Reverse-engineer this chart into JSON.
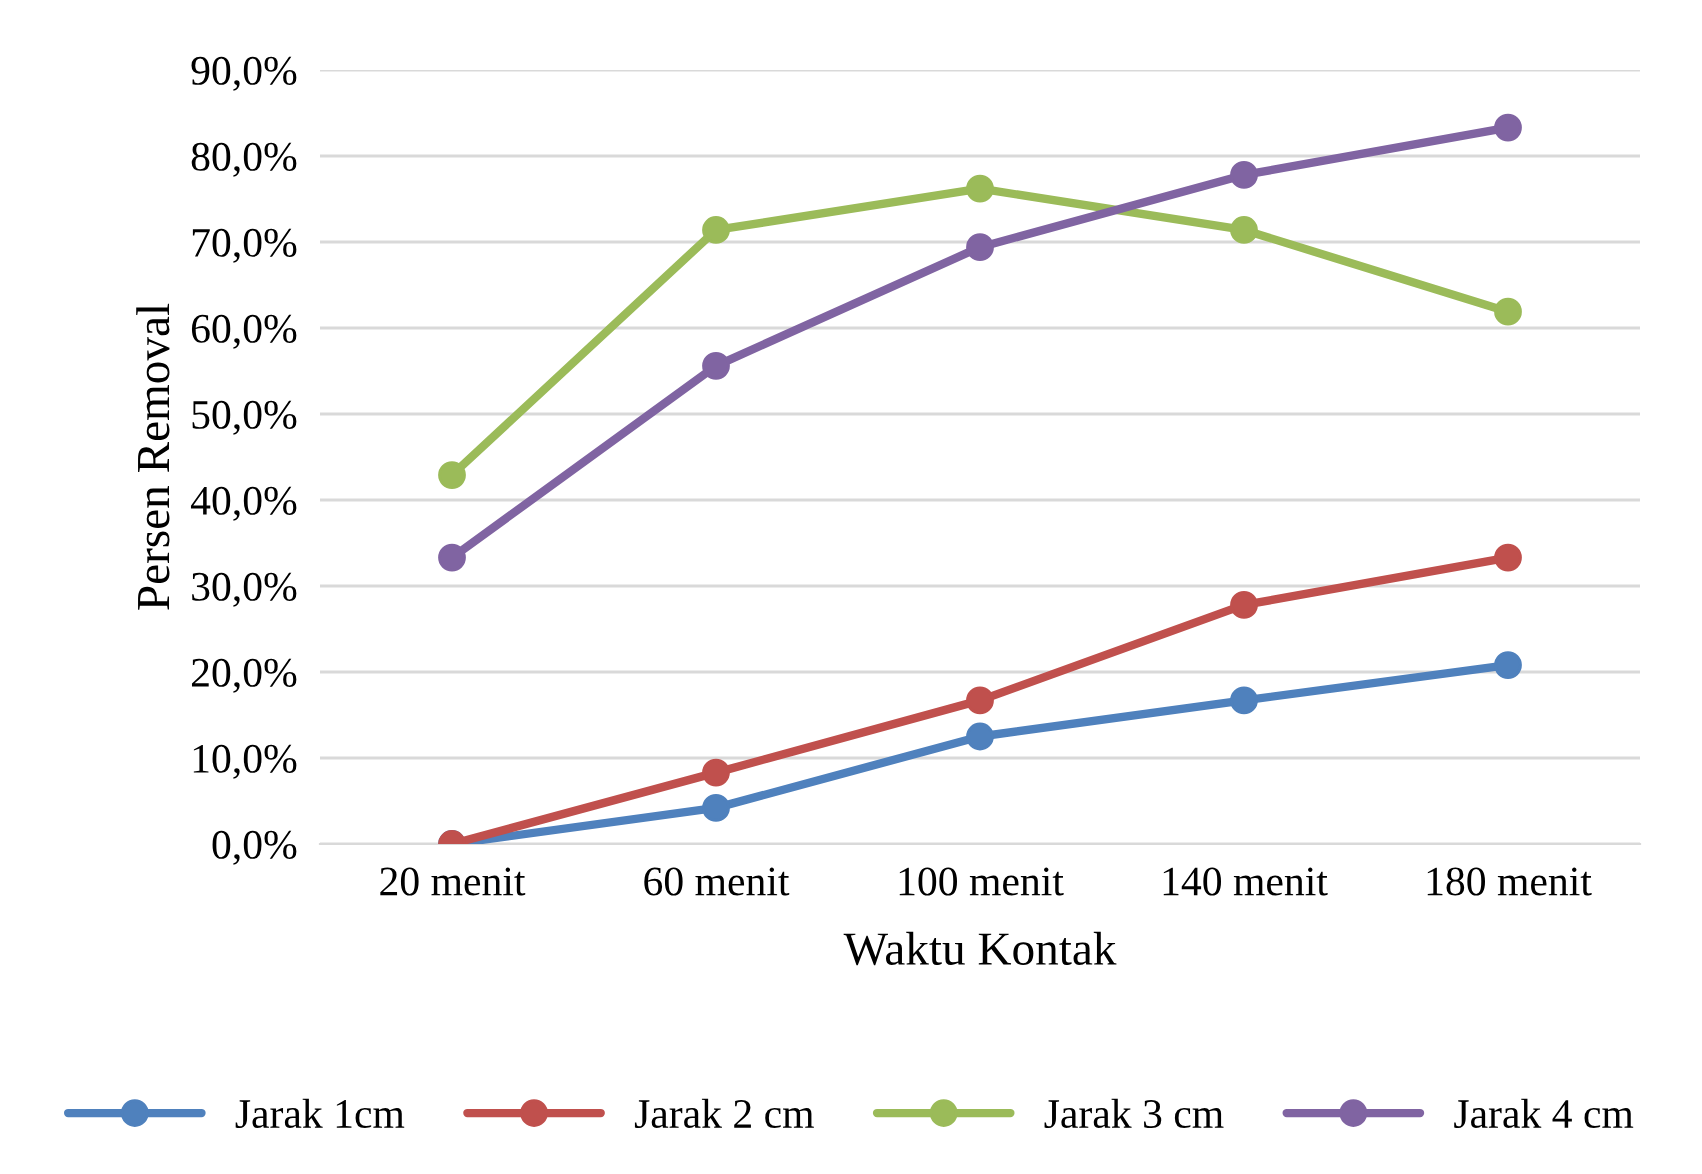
{
  "chart_data": {
    "type": "line",
    "xlabel": "Waktu Kontak",
    "ylabel": "Persen Removal",
    "categories": [
      "20 menit",
      "60 menit",
      "100 menit",
      "140 menit",
      "180 menit"
    ],
    "series": [
      {
        "name": "Jarak 1cm",
        "color": "#4f81bd",
        "values": [
          0,
          4.2,
          12.5,
          16.7,
          20.8
        ]
      },
      {
        "name": "Jarak 2 cm",
        "color": "#c0504d",
        "values": [
          0,
          8.3,
          16.7,
          27.8,
          33.3
        ]
      },
      {
        "name": "Jarak 3 cm",
        "color": "#9bbb59",
        "values": [
          42.9,
          71.4,
          76.2,
          71.4,
          61.9
        ]
      },
      {
        "name": "Jarak 4 cm",
        "color": "#8064a2",
        "values": [
          33.3,
          55.6,
          69.4,
          77.8,
          83.3
        ]
      }
    ],
    "ylim": [
      0,
      90
    ],
    "yticks": [
      {
        "value": 0,
        "label": "0,0%"
      },
      {
        "value": 10,
        "label": "10,0%"
      },
      {
        "value": 20,
        "label": "20,0%"
      },
      {
        "value": 30,
        "label": "30,0%"
      },
      {
        "value": 40,
        "label": "40,0%"
      },
      {
        "value": 50,
        "label": "50,0%"
      },
      {
        "value": 60,
        "label": "60,0%"
      },
      {
        "value": 70,
        "label": "70,0%"
      },
      {
        "value": 80,
        "label": "80,0%"
      },
      {
        "value": 90,
        "label": "90,0%"
      }
    ],
    "grid": "y",
    "legend": "bottom",
    "marker": "circle",
    "line_style": "solid"
  }
}
